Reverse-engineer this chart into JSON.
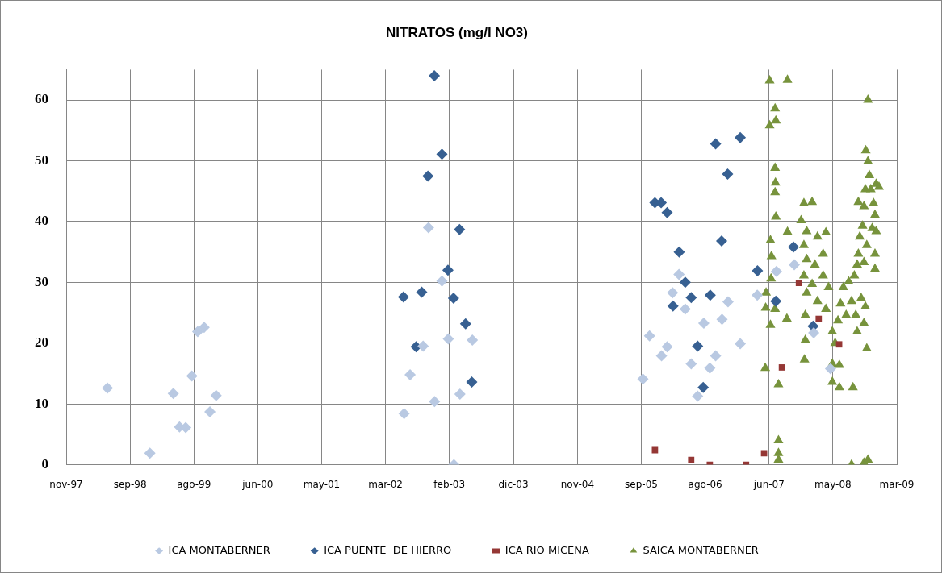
{
  "chart_data": {
    "type": "scatter",
    "title": "NITRATOS (mg/l NO3)",
    "xlim": [
      "1997-11-15",
      "2009-03-26"
    ],
    "xticks": [
      {
        "value": "1997-11-15",
        "label": "nov-97"
      },
      {
        "value": "1998-09-30",
        "label": "sep-98"
      },
      {
        "value": "1999-08-15",
        "label": "ago-99"
      },
      {
        "value": "2000-06-29",
        "label": "jun-00"
      },
      {
        "value": "2001-05-14",
        "label": "may-01"
      },
      {
        "value": "2002-03-29",
        "label": "mar-02"
      },
      {
        "value": "2003-02-11",
        "label": "feb-03"
      },
      {
        "value": "2003-12-28",
        "label": "dic-03"
      },
      {
        "value": "2004-11-12",
        "label": "nov-04"
      },
      {
        "value": "2005-09-27",
        "label": "sep-05"
      },
      {
        "value": "2006-08-12",
        "label": "ago-06"
      },
      {
        "value": "2007-06-27",
        "label": "jun-07"
      },
      {
        "value": "2008-05-11",
        "label": "may-08"
      },
      {
        "value": "2009-03-26",
        "label": "mar-09"
      }
    ],
    "ylim": [
      0,
      65
    ],
    "yticks": [
      0,
      10,
      20,
      30,
      40,
      50,
      60
    ],
    "grid": true,
    "legend": "bottom",
    "series": [
      {
        "name": "ICA MONTABERNER",
        "color": "#b9c9e2",
        "marker": "diamond",
        "x": [
          "1998-06-09",
          "1999-01-07",
          "1999-05-04",
          "1999-06-04",
          "1999-07-05",
          "1999-08-05",
          "1999-09-03",
          "1999-10-05",
          "1999-11-03",
          "1999-12-04",
          "2002-06-30",
          "2002-07-30",
          "2002-10-03",
          "2002-10-30",
          "2002-11-29",
          "2003-01-05",
          "2003-02-06",
          "2003-03-06",
          "2003-04-05",
          "2003-06-06",
          "2005-10-05",
          "2005-11-07",
          "2006-01-06",
          "2006-02-03",
          "2006-03-02",
          "2006-04-03",
          "2006-05-04",
          "2006-06-03",
          "2006-07-05",
          "2006-08-05",
          "2006-09-04",
          "2006-10-03",
          "2006-11-04",
          "2006-12-04",
          "2007-02-03",
          "2007-04-29",
          "2007-08-03",
          "2007-10-31",
          "2008-02-05",
          "2008-04-29"
        ],
        "values": [
          12.6,
          1.9,
          11.7,
          6.2,
          6.1,
          14.6,
          21.9,
          22.6,
          8.7,
          11.4,
          8.4,
          14.8,
          19.5,
          39.0,
          10.4,
          30.2,
          20.7,
          0,
          11.6,
          20.5,
          14.1,
          21.2,
          17.9,
          19.4,
          28.3,
          31.3,
          25.6,
          16.6,
          11.3,
          23.3,
          15.9,
          17.9,
          23.9,
          26.8,
          19.9,
          27.9,
          31.8,
          32.9,
          21.7,
          15.8
        ]
      },
      {
        "name": "ICA PUENTE  DE HIERRO",
        "color": "#376092",
        "marker": "diamond",
        "x": [
          "2002-06-27",
          "2002-08-29",
          "2002-09-26",
          "2002-10-27",
          "2002-11-28",
          "2003-01-05",
          "2003-02-04",
          "2003-03-04",
          "2003-04-03",
          "2003-05-03",
          "2003-06-03",
          "2005-12-04",
          "2006-01-04",
          "2006-02-03",
          "2006-03-04",
          "2006-04-04",
          "2006-05-04",
          "2006-06-03",
          "2006-07-05",
          "2006-08-02",
          "2006-09-06",
          "2006-10-03",
          "2006-11-02",
          "2006-12-02",
          "2007-02-03",
          "2007-04-30",
          "2007-07-31",
          "2007-10-27",
          "2008-02-02"
        ],
        "values": [
          27.6,
          19.4,
          28.4,
          47.5,
          64.0,
          51.1,
          32.0,
          27.4,
          38.7,
          23.2,
          13.6,
          43.1,
          43.1,
          41.5,
          26.1,
          35.0,
          30.0,
          27.5,
          19.5,
          12.7,
          27.9,
          52.8,
          36.8,
          47.8,
          53.8,
          31.9,
          26.9,
          35.8,
          22.8
        ]
      },
      {
        "name": "ICA RIO MICENA",
        "color": "#953735",
        "marker": "square",
        "x": [
          "2005-12-04",
          "2006-06-03",
          "2006-09-04",
          "2007-03-04",
          "2007-06-02",
          "2007-08-30",
          "2007-11-23",
          "2008-03-01",
          "2008-06-11"
        ],
        "values": [
          2.4,
          0.8,
          0,
          0,
          1.9,
          16.0,
          29.9,
          24.0,
          19.8
        ]
      },
      {
        "name": "SAICA MONTABERNER",
        "color": "#77933c",
        "marker": "triangle",
        "x": [
          "2007-06-30",
          "2007-09-27",
          "2007-07-27",
          "2007-07-31",
          "2007-06-30",
          "2007-07-27",
          "2007-07-29",
          "2007-07-27",
          "2007-07-31",
          "2007-09-27",
          "2007-07-04",
          "2007-07-09",
          "2007-07-07",
          "2007-06-12",
          "2007-06-10",
          "2007-07-27",
          "2007-09-24",
          "2007-07-04",
          "2007-06-08",
          "2007-08-13",
          "2007-08-13",
          "2007-08-13",
          "2007-08-13",
          "2007-12-18",
          "2008-01-28",
          "2007-12-04",
          "2008-01-01",
          "2007-12-18",
          "2008-02-24",
          "2008-04-06",
          "2008-01-01",
          "2008-02-11",
          "2008-03-23",
          "2007-12-18",
          "2008-01-28",
          "2008-03-23",
          "2008-04-19",
          "2008-01-01",
          "2008-02-24",
          "2008-04-06",
          "2007-12-25",
          "2007-12-25",
          "2007-12-21",
          "2008-05-08",
          "2008-05-22",
          "2008-05-08",
          "2008-05-08",
          "2008-06-12",
          "2008-06-12",
          "2008-08-19",
          "2008-06-05",
          "2008-06-18",
          "2008-07-02",
          "2008-07-16",
          "2008-07-29",
          "2008-08-12",
          "2008-08-26",
          "2008-09-02",
          "2008-09-09",
          "2008-09-15",
          "2008-09-09",
          "2008-09-22",
          "2008-09-29",
          "2008-10-06",
          "2008-10-13",
          "2008-10-13",
          "2008-10-20",
          "2008-10-27",
          "2008-10-22",
          "2008-11-02",
          "2008-11-09",
          "2008-11-16",
          "2008-11-30",
          "2008-12-13",
          "2008-12-27",
          "2008-12-07",
          "2008-12-13",
          "2008-12-07",
          "2008-12-07",
          "2008-11-23",
          "2008-11-02",
          "2008-09-15",
          "2008-10-27",
          "2008-10-13",
          "2008-10-20",
          "2008-08-12",
          "2008-10-13",
          "2008-11-02"
        ],
        "values": [
          63.2,
          63.3,
          58.6,
          56.6,
          55.8,
          48.8,
          46.4,
          44.8,
          40.8,
          38.3,
          36.9,
          34.3,
          30.6,
          28.3,
          25.8,
          25.6,
          24.0,
          23.0,
          15.9,
          13.2,
          4.0,
          1.9,
          0.8,
          43.0,
          43.2,
          40.2,
          38.4,
          36.1,
          37.5,
          38.2,
          33.8,
          32.9,
          34.7,
          31.1,
          29.7,
          31.1,
          29.2,
          28.3,
          26.9,
          25.6,
          24.6,
          20.5,
          17.3,
          21.9,
          20.0,
          16.6,
          13.6,
          16.4,
          12.7,
          12.7,
          23.7,
          26.5,
          29.2,
          24.6,
          30.1,
          26.9,
          31.1,
          24.6,
          32.9,
          34.7,
          21.9,
          37.5,
          27.4,
          39.3,
          23.3,
          42.5,
          45.3,
          19.1,
          51.7,
          49.9,
          47.6,
          45.3,
          43.0,
          46.2,
          45.7,
          41.1,
          38.4,
          34.7,
          32.2,
          38.9,
          60.0,
          43.2,
          36.1,
          33.3,
          26.0,
          0,
          0.3,
          0.8
        ]
      }
    ]
  }
}
